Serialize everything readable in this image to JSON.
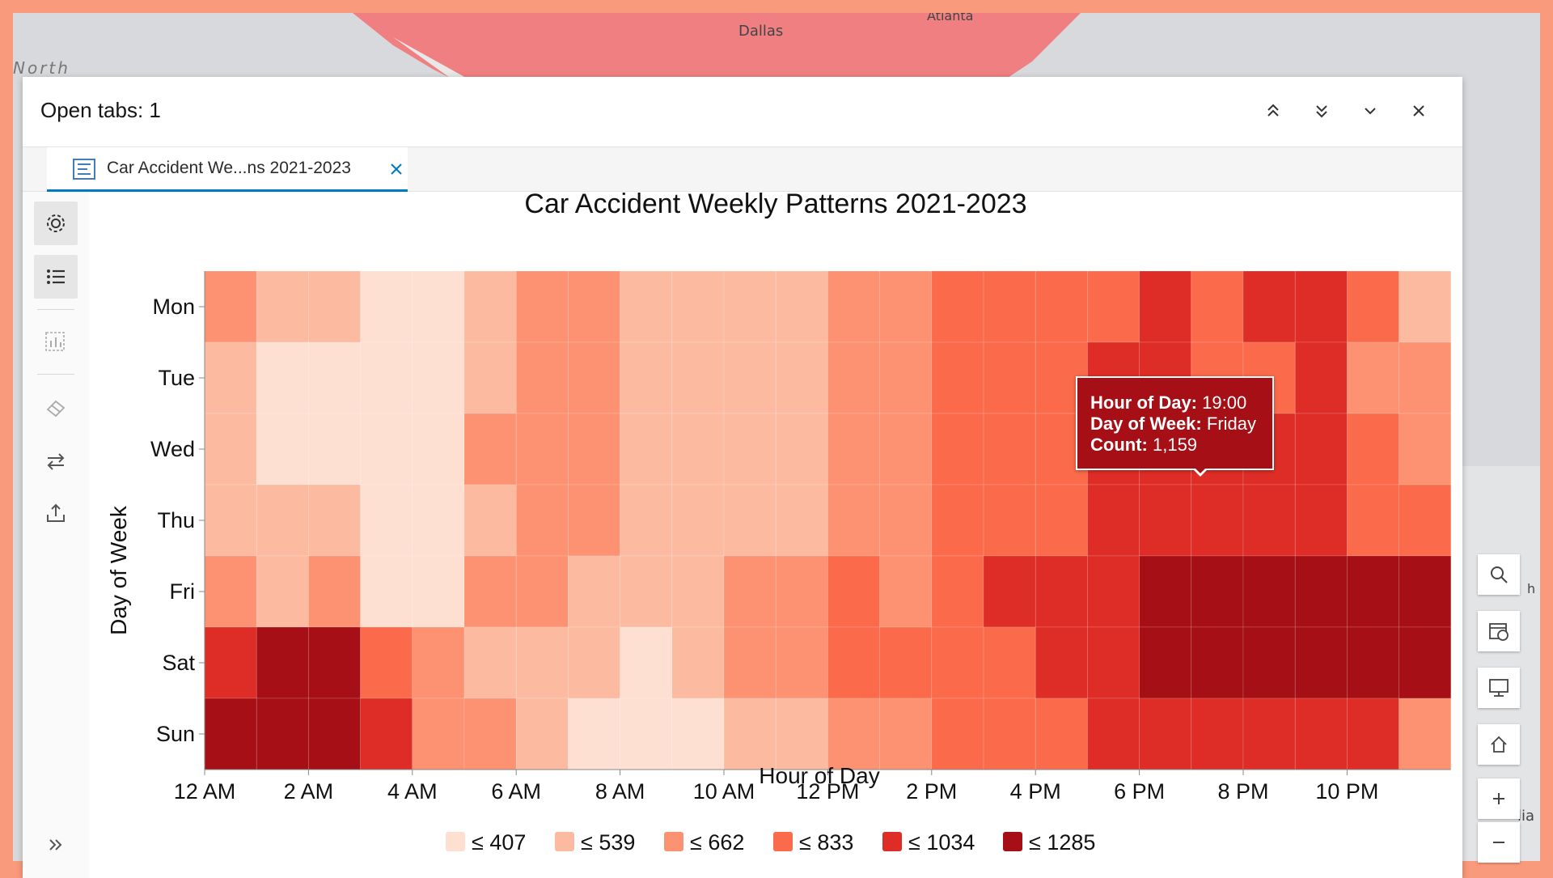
{
  "map": {
    "labels": [
      "Dallas",
      "Atlanta",
      "North",
      "lia",
      "h"
    ]
  },
  "panel": {
    "title": "Open tabs: 1",
    "tab_label": "Car Accident We...ns 2021-2023"
  },
  "tooltip": {
    "hour_label": "Hour of Day:",
    "hour_value": "19:00",
    "day_label": "Day of Week:",
    "day_value": "Friday",
    "count_label": "Count:",
    "count_value": "1,159"
  },
  "colors": {
    "accent": "#007ac2",
    "scale": [
      "#fee0d2",
      "#fcbba1",
      "#fc9272",
      "#fb6a4a",
      "#de2d26",
      "#a50f15"
    ]
  },
  "chart_data": {
    "type": "heatmap",
    "title": "Car Accident Weekly Patterns 2021-2023",
    "xlabel": "Hour of Day",
    "ylabel": "Day of Week",
    "x_ticks": [
      "12 AM",
      "2 AM",
      "4 AM",
      "6 AM",
      "8 AM",
      "10 AM",
      "12 PM",
      "2 PM",
      "4 PM",
      "6 PM",
      "8 PM",
      "10 PM"
    ],
    "days": [
      "Mon",
      "Tue",
      "Wed",
      "Thu",
      "Fri",
      "Sat",
      "Sun"
    ],
    "hours": [
      0,
      1,
      2,
      3,
      4,
      5,
      6,
      7,
      8,
      9,
      10,
      11,
      12,
      13,
      14,
      15,
      16,
      17,
      18,
      19,
      20,
      21,
      22,
      23
    ],
    "legend": [
      "≤ 407",
      "≤ 539",
      "≤ 662",
      "≤ 833",
      "≤ 1034",
      "≤ 1285"
    ],
    "class_breaks": [
      407,
      539,
      662,
      833,
      1034,
      1285
    ],
    "values": [
      [
        600,
        500,
        500,
        350,
        350,
        500,
        650,
        650,
        500,
        500,
        500,
        500,
        650,
        650,
        750,
        750,
        750,
        800,
        1000,
        800,
        1000,
        1000,
        750,
        500
      ],
      [
        500,
        350,
        350,
        350,
        350,
        500,
        650,
        650,
        500,
        500,
        500,
        500,
        650,
        650,
        750,
        750,
        750,
        1000,
        1000,
        800,
        750,
        1000,
        650,
        650
      ],
      [
        500,
        350,
        350,
        350,
        350,
        650,
        650,
        650,
        500,
        500,
        500,
        500,
        650,
        650,
        750,
        750,
        750,
        1000,
        1000,
        1000,
        1000,
        1000,
        750,
        650
      ],
      [
        500,
        500,
        500,
        350,
        350,
        500,
        650,
        650,
        500,
        500,
        500,
        500,
        650,
        650,
        750,
        750,
        750,
        1000,
        1000,
        1000,
        1000,
        1000,
        750,
        800
      ],
      [
        650,
        500,
        650,
        350,
        350,
        650,
        650,
        500,
        500,
        500,
        650,
        650,
        800,
        650,
        750,
        1000,
        1000,
        1000,
        1200,
        1159,
        1200,
        1200,
        1200,
        1200
      ],
      [
        1000,
        1200,
        1200,
        800,
        650,
        500,
        500,
        500,
        350,
        500,
        650,
        650,
        800,
        800,
        750,
        750,
        1000,
        1000,
        1200,
        1200,
        1200,
        1200,
        1200,
        1200
      ],
      [
        1200,
        1200,
        1200,
        1000,
        650,
        650,
        500,
        350,
        350,
        350,
        500,
        500,
        650,
        650,
        750,
        750,
        750,
        1000,
        1000,
        1000,
        1000,
        1000,
        1000,
        650
      ]
    ]
  }
}
